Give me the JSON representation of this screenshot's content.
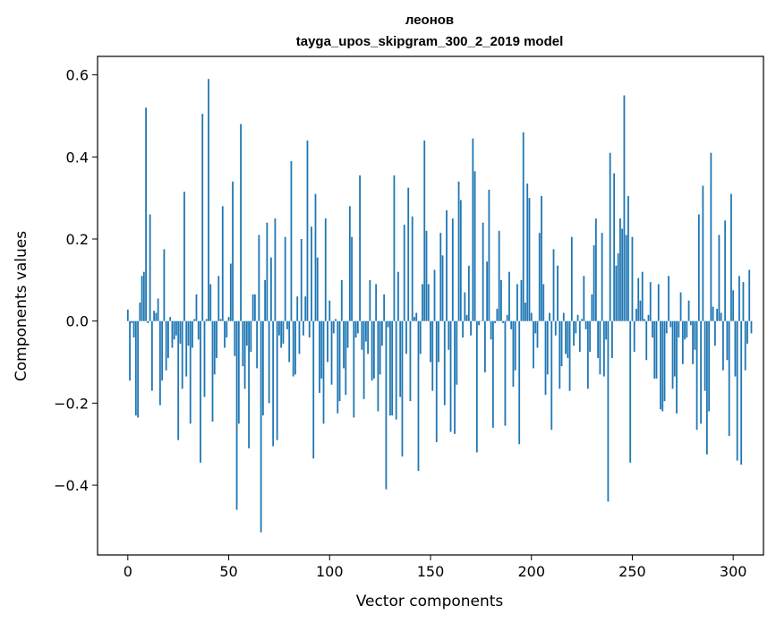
{
  "chart_data": {
    "type": "bar",
    "title": "леонов",
    "subtitle": "tayga_upos_skipgram_300_2_2019 model",
    "xlabel": "Vector components",
    "ylabel": "Components values",
    "xlim": [
      -15,
      315
    ],
    "ylim": [
      -0.57,
      0.645
    ],
    "xticks": [
      0,
      50,
      100,
      150,
      200,
      250,
      300
    ],
    "yticks": [
      -0.4,
      -0.2,
      0.0,
      0.2,
      0.4,
      0.6
    ],
    "xtick_labels": [
      "0",
      "50",
      "100",
      "150",
      "200",
      "250",
      "300"
    ],
    "ytick_labels": [
      "−0.4",
      "−0.2",
      "0.0",
      "0.2",
      "0.4",
      "0.6"
    ],
    "grid": false,
    "bar_color": "#1f77b4",
    "values": [
      0.028,
      -0.145,
      -0.005,
      -0.04,
      -0.23,
      -0.235,
      0.045,
      0.11,
      0.12,
      0.52,
      -0.005,
      0.26,
      -0.17,
      0.025,
      0.02,
      0.055,
      -0.205,
      -0.145,
      0.175,
      -0.12,
      -0.09,
      0.01,
      -0.065,
      -0.045,
      -0.035,
      -0.29,
      -0.055,
      -0.165,
      0.315,
      -0.135,
      -0.06,
      -0.25,
      -0.065,
      0.005,
      0.065,
      -0.045,
      -0.345,
      0.505,
      -0.185,
      0.005,
      0.59,
      0.09,
      -0.245,
      -0.13,
      -0.09,
      0.11,
      0.005,
      0.28,
      -0.065,
      -0.04,
      0.01,
      0.14,
      0.34,
      -0.085,
      -0.46,
      -0.25,
      0.48,
      -0.11,
      -0.165,
      -0.06,
      -0.31,
      -0.075,
      0.065,
      0.065,
      -0.115,
      0.21,
      -0.515,
      -0.23,
      0.1,
      0.24,
      -0.2,
      0.155,
      -0.305,
      0.25,
      -0.29,
      -0.035,
      -0.065,
      -0.055,
      0.205,
      -0.02,
      -0.1,
      0.39,
      -0.135,
      -0.13,
      0.06,
      -0.08,
      0.2,
      -0.035,
      0.06,
      0.44,
      -0.04,
      0.23,
      -0.335,
      0.31,
      0.155,
      -0.175,
      -0.14,
      -0.25,
      0.25,
      -0.1,
      0.05,
      -0.155,
      -0.03,
      0.005,
      -0.225,
      -0.195,
      0.1,
      -0.115,
      -0.18,
      -0.065,
      0.28,
      0.205,
      -0.235,
      -0.04,
      -0.03,
      0.355,
      -0.07,
      -0.19,
      -0.05,
      -0.08,
      0.1,
      -0.145,
      -0.14,
      0.09,
      -0.22,
      -0.13,
      -0.06,
      0.065,
      -0.41,
      -0.015,
      -0.23,
      -0.23,
      0.355,
      -0.24,
      0.12,
      -0.185,
      -0.33,
      0.235,
      -0.08,
      0.325,
      -0.195,
      0.255,
      0.01,
      0.02,
      -0.365,
      -0.08,
      0.09,
      0.44,
      0.22,
      0.09,
      -0.1,
      -0.17,
      0.125,
      -0.295,
      -0.1,
      0.215,
      0.16,
      -0.205,
      0.27,
      -0.07,
      -0.27,
      0.25,
      -0.275,
      -0.155,
      0.34,
      0.295,
      -0.04,
      0.07,
      0.015,
      0.135,
      -0.035,
      0.445,
      0.365,
      -0.32,
      -0.01,
      0.0,
      0.24,
      -0.125,
      0.145,
      0.32,
      -0.045,
      -0.26,
      -0.005,
      0.03,
      0.22,
      0.1,
      -0.005,
      -0.255,
      0.015,
      0.12,
      -0.02,
      -0.16,
      -0.12,
      0.09,
      -0.3,
      0.1,
      0.46,
      0.045,
      0.335,
      0.3,
      0.02,
      -0.115,
      -0.03,
      -0.065,
      0.215,
      0.305,
      0.09,
      -0.18,
      -0.13,
      0.02,
      -0.265,
      0.175,
      -0.035,
      0.135,
      -0.165,
      -0.11,
      0.02,
      -0.08,
      -0.09,
      -0.17,
      0.205,
      -0.06,
      -0.03,
      0.015,
      -0.075,
      0.005,
      0.11,
      -0.02,
      -0.165,
      -0.075,
      0.065,
      0.185,
      0.25,
      -0.09,
      -0.13,
      0.215,
      -0.135,
      -0.045,
      -0.44,
      0.41,
      -0.09,
      0.36,
      0.135,
      0.165,
      0.25,
      0.225,
      0.55,
      0.21,
      0.305,
      -0.345,
      0.205,
      -0.075,
      0.03,
      0.105,
      0.05,
      0.12,
      0.005,
      -0.095,
      0.015,
      0.095,
      -0.04,
      -0.14,
      -0.14,
      0.09,
      -0.215,
      -0.22,
      -0.195,
      -0.03,
      0.11,
      -0.015,
      -0.165,
      -0.135,
      -0.225,
      -0.04,
      0.07,
      -0.105,
      -0.045,
      -0.04,
      0.05,
      -0.01,
      -0.105,
      -0.07,
      -0.265,
      0.26,
      -0.25,
      0.33,
      -0.17,
      -0.325,
      -0.22,
      0.41,
      0.035,
      -0.06,
      0.03,
      0.21,
      0.02,
      -0.12,
      0.245,
      -0.095,
      -0.28,
      0.31,
      0.075,
      -0.135,
      -0.34,
      0.11,
      -0.35,
      0.095,
      -0.12,
      -0.055,
      0.125,
      -0.03
    ]
  }
}
